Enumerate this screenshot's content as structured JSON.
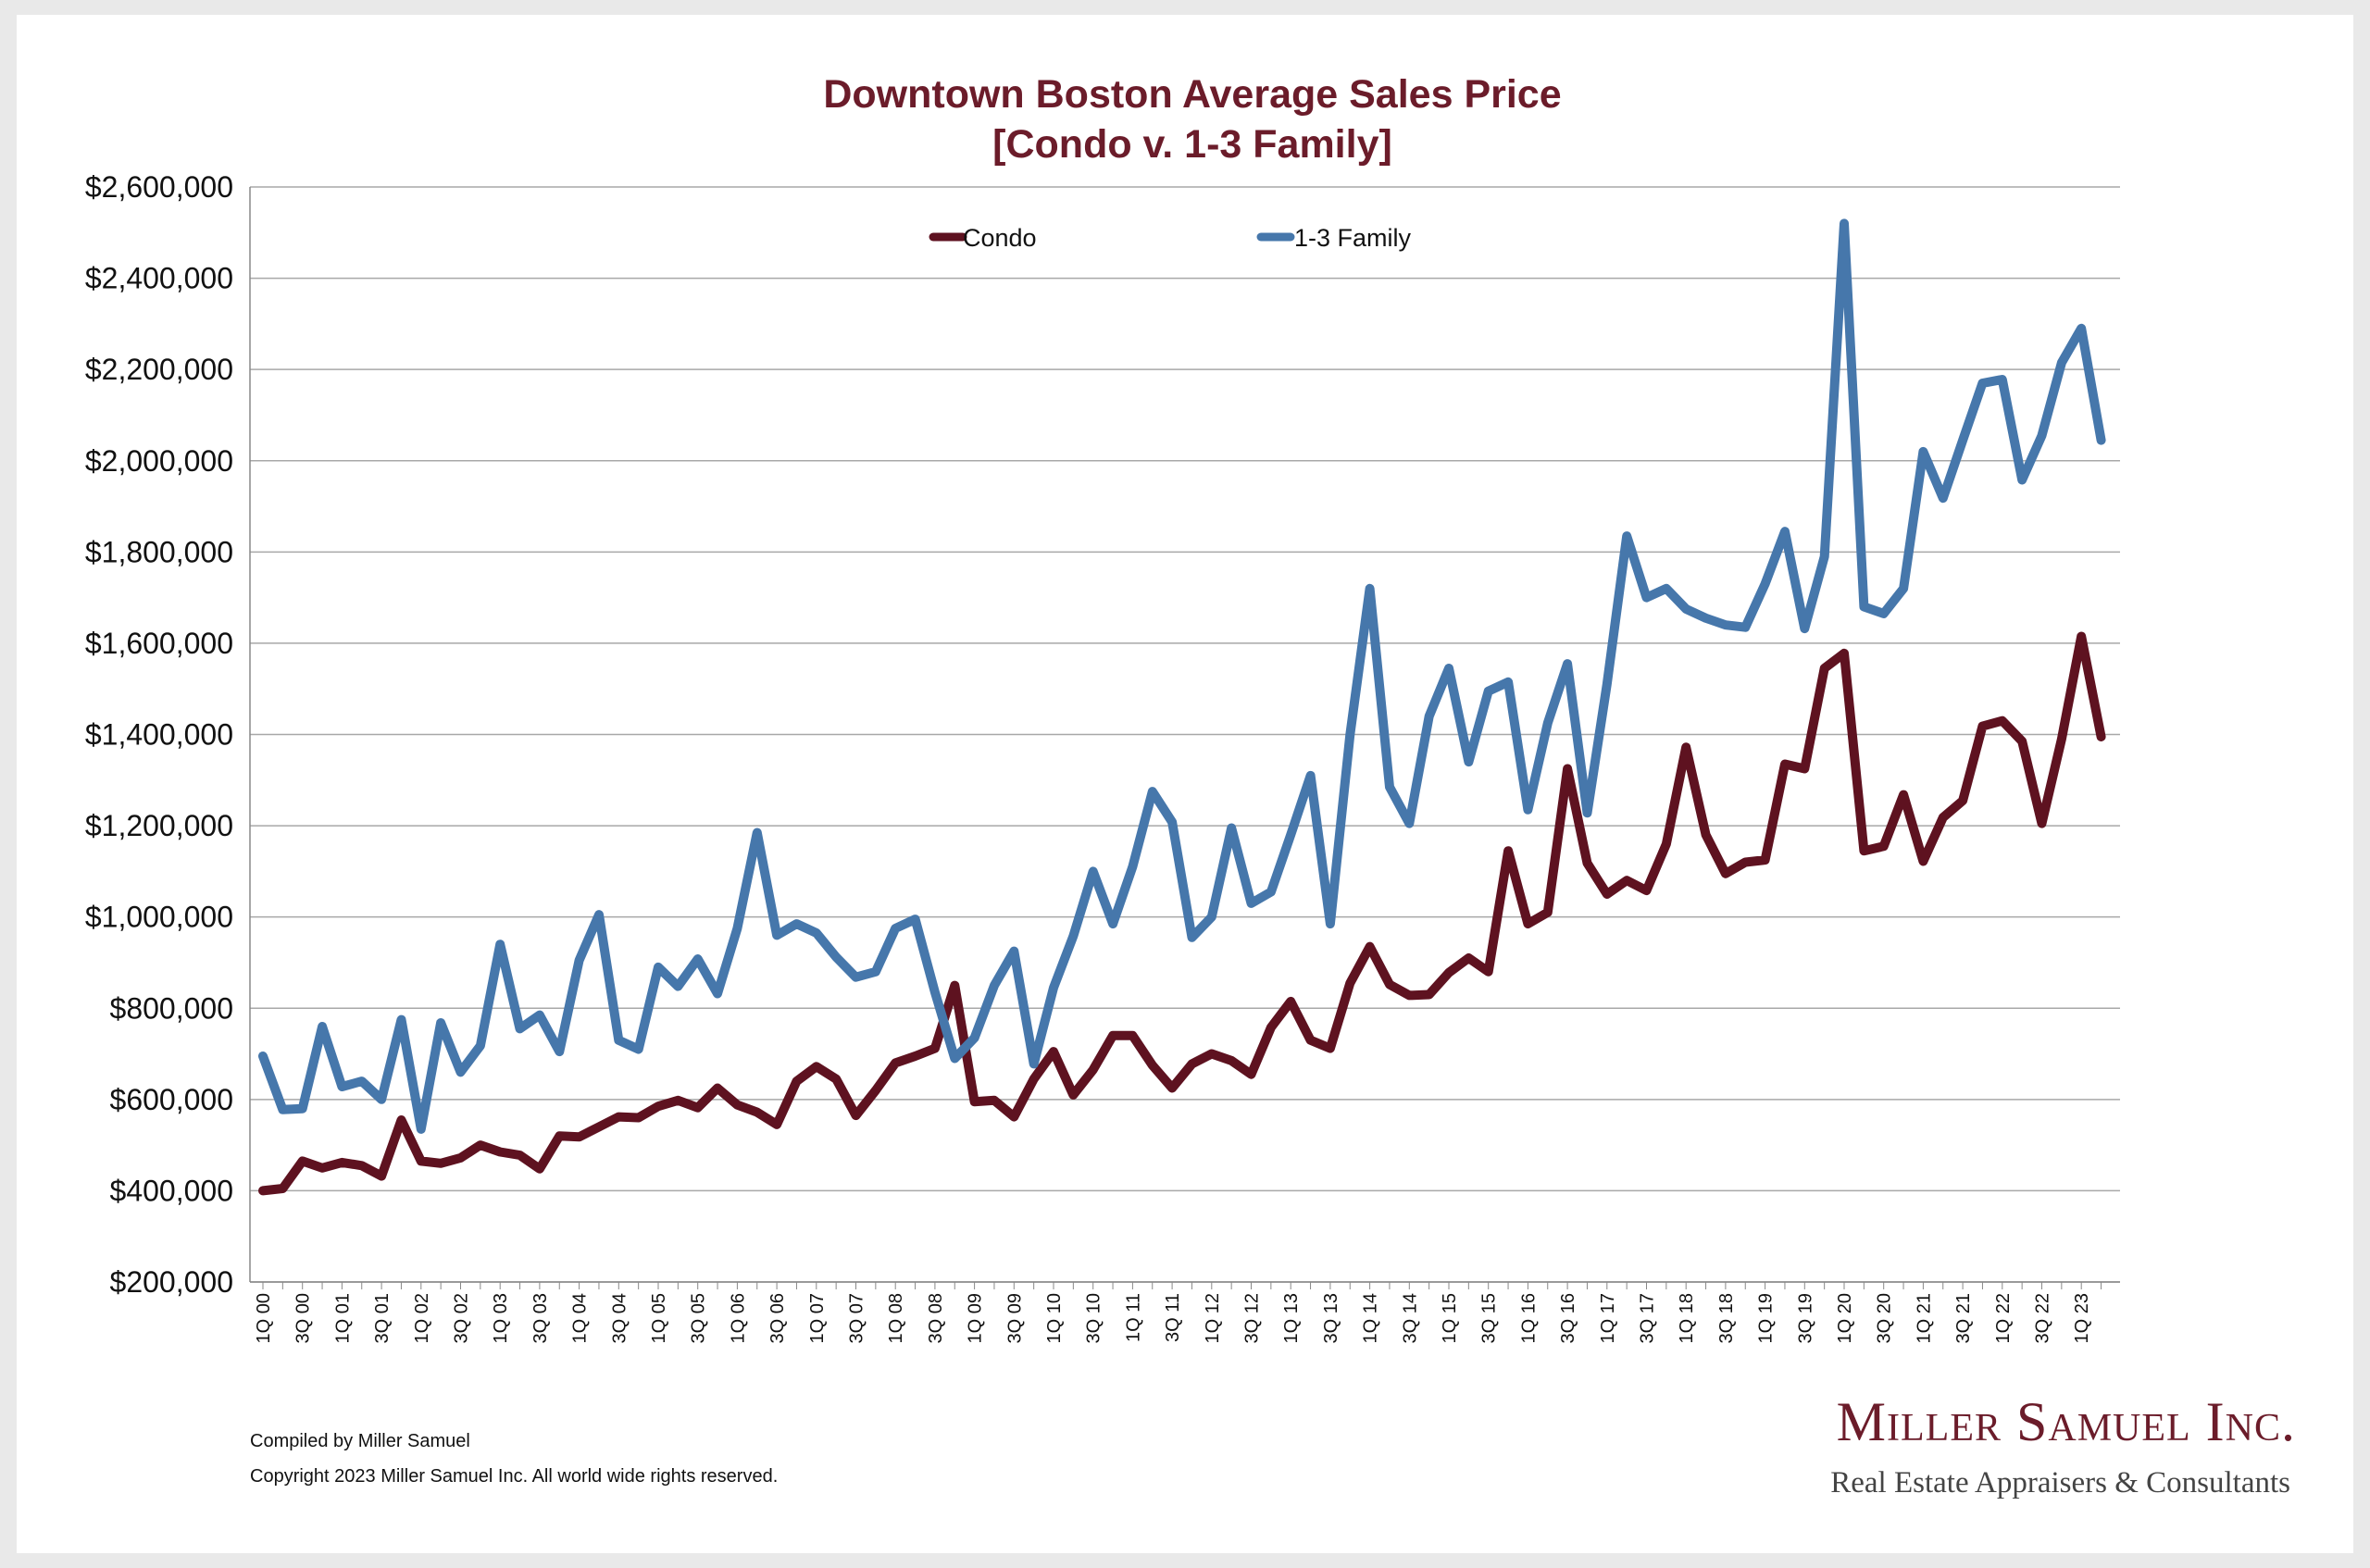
{
  "chart_data": {
    "type": "line",
    "title": "Downtown Boston Average Sales Price",
    "subtitle": "[Condo v. 1-3 Family]",
    "xlabel": "",
    "ylabel": "",
    "ylim": [
      200000,
      2600000
    ],
    "yticks": [
      200000,
      400000,
      600000,
      800000,
      1000000,
      1200000,
      1400000,
      1600000,
      1800000,
      2000000,
      2200000,
      2400000,
      2600000
    ],
    "ytick_labels": [
      "$200,000",
      "$400,000",
      "$600,000",
      "$800,000",
      "$1,000,000",
      "$1,200,000",
      "$1,400,000",
      "$1,600,000",
      "$1,800,000",
      "$2,000,000",
      "$2,200,000",
      "$2,400,000",
      "$2,600,000"
    ],
    "grid": "horizontal",
    "legend_position": "top-center",
    "categories": [
      "1Q 00",
      "2Q 00",
      "3Q 00",
      "4Q 00",
      "1Q 01",
      "2Q 01",
      "3Q 01",
      "4Q 01",
      "1Q 02",
      "2Q 02",
      "3Q 02",
      "4Q 02",
      "1Q 03",
      "2Q 03",
      "3Q 03",
      "4Q 03",
      "1Q 04",
      "2Q 04",
      "3Q 04",
      "4Q 04",
      "1Q 05",
      "2Q 05",
      "3Q 05",
      "4Q 05",
      "1Q 06",
      "2Q 06",
      "3Q 06",
      "4Q 06",
      "1Q 07",
      "2Q 07",
      "3Q 07",
      "4Q 07",
      "1Q 08",
      "2Q 08",
      "3Q 08",
      "4Q 08",
      "1Q 09",
      "2Q 09",
      "3Q 09",
      "4Q 09",
      "1Q 10",
      "2Q 10",
      "3Q 10",
      "4Q 10",
      "1Q 11",
      "2Q 11",
      "3Q 11",
      "4Q 11",
      "1Q 12",
      "2Q 12",
      "3Q 12",
      "4Q 12",
      "1Q 13",
      "2Q 13",
      "3Q 13",
      "4Q 13",
      "1Q 14",
      "2Q 14",
      "3Q 14",
      "4Q 14",
      "1Q 15",
      "2Q 15",
      "3Q 15",
      "4Q 15",
      "1Q 16",
      "2Q 16",
      "3Q 16",
      "4Q 16",
      "1Q 17",
      "2Q 17",
      "3Q 17",
      "4Q 17",
      "1Q 18",
      "2Q 18",
      "3Q 18",
      "4Q 18",
      "1Q 19",
      "2Q 19",
      "3Q 19",
      "4Q 19",
      "1Q 20",
      "2Q 20",
      "3Q 20",
      "4Q 20",
      "1Q 21",
      "2Q 21",
      "3Q 21",
      "4Q 21",
      "1Q 22",
      "2Q 22",
      "3Q 22",
      "4Q 22",
      "1Q 23",
      "2Q 23"
    ],
    "visible_tick_labels": [
      "1Q 00",
      "3Q 00",
      "1Q 01",
      "3Q 01",
      "1Q 02",
      "3Q 02",
      "1Q 03",
      "3Q 03",
      "1Q 04",
      "3Q 04",
      "1Q 05",
      "3Q 05",
      "1Q 06",
      "3Q 06",
      "1Q 07",
      "3Q 07",
      "1Q 08",
      "3Q 08",
      "1Q 09",
      "3Q 09",
      "1Q 10",
      "3Q 10",
      "1Q 11",
      "3Q 11",
      "1Q 12",
      "3Q 12",
      "1Q 13",
      "3Q 13",
      "1Q 14",
      "3Q 14",
      "1Q 15",
      "3Q 15",
      "1Q 16",
      "3Q 16",
      "1Q 17",
      "3Q 17",
      "1Q 18",
      "3Q 18",
      "1Q 19",
      "3Q 19",
      "1Q 20",
      "3Q 20",
      "1Q 21",
      "3Q 21",
      "1Q 22",
      "3Q 22",
      "1Q 23"
    ],
    "series": [
      {
        "name": "Condo",
        "color": "#5e1220",
        "values": [
          400000,
          405000,
          465000,
          450000,
          462000,
          455000,
          432000,
          555000,
          465000,
          460000,
          472000,
          500000,
          485000,
          478000,
          448000,
          520000,
          518000,
          540000,
          562000,
          560000,
          585000,
          598000,
          582000,
          625000,
          588000,
          572000,
          545000,
          640000,
          672000,
          645000,
          565000,
          620000,
          680000,
          695000,
          712000,
          850000,
          595000,
          598000,
          562000,
          645000,
          705000,
          610000,
          665000,
          740000,
          740000,
          675000,
          625000,
          678000,
          700000,
          685000,
          655000,
          758000,
          815000,
          730000,
          712000,
          855000,
          935000,
          852000,
          828000,
          830000,
          878000,
          910000,
          880000,
          1145000,
          985000,
          1010000,
          1325000,
          1118000,
          1050000,
          1080000,
          1058000,
          1160000,
          1372000,
          1180000,
          1095000,
          1120000,
          1125000,
          1335000,
          1325000,
          1545000,
          1578000,
          1145000,
          1155000,
          1268000,
          1122000,
          1218000,
          1255000,
          1418000,
          1430000,
          1385000,
          1205000,
          1390000,
          1615000,
          1395000
        ]
      },
      {
        "name": "1-3 Family",
        "color": "#4677ab",
        "values": [
          695000,
          578000,
          580000,
          760000,
          628000,
          640000,
          600000,
          775000,
          535000,
          768000,
          660000,
          718000,
          940000,
          755000,
          785000,
          705000,
          905000,
          1005000,
          730000,
          710000,
          890000,
          848000,
          908000,
          832000,
          975000,
          1185000,
          960000,
          985000,
          965000,
          912000,
          868000,
          880000,
          975000,
          995000,
          835000,
          690000,
          735000,
          850000,
          925000,
          678000,
          845000,
          958000,
          1100000,
          985000,
          1110000,
          1275000,
          1208000,
          955000,
          1000000,
          1195000,
          1030000,
          1055000,
          1180000,
          1310000,
          985000,
          1400000,
          1720000,
          1285000,
          1205000,
          1440000,
          1545000,
          1340000,
          1495000,
          1515000,
          1235000,
          1425000,
          1555000,
          1228000,
          1510000,
          1835000,
          1700000,
          1720000,
          1675000,
          1655000,
          1640000,
          1635000,
          1730000,
          1845000,
          1632000,
          1790000,
          2520000,
          1680000,
          1665000,
          1720000,
          2020000,
          1918000,
          2045000,
          2170000,
          2178000,
          1958000,
          2055000,
          2215000,
          2290000,
          2045000
        ]
      }
    ]
  },
  "footer": {
    "compiled": "Compiled by Miller Samuel",
    "copyright": "Copyright 2023 Miller Samuel Inc.  All world wide rights reserved."
  },
  "logo": {
    "name": "Miller Samuel Inc.",
    "tagline": "Real Estate Appraisers & Consultants"
  }
}
